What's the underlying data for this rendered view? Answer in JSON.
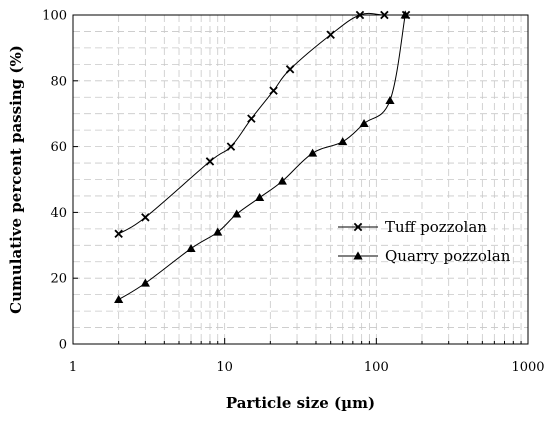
{
  "chart_data": {
    "type": "line",
    "title": "",
    "xlabel": "Particle size (µm)",
    "ylabel": "Cumulative percent passing (%)",
    "xscale": "log",
    "xlim": [
      1,
      1000
    ],
    "ylim": [
      0,
      100
    ],
    "x_ticks": [
      1,
      10,
      100,
      1000
    ],
    "x_tick_labels": [
      "1",
      "10",
      "100",
      "1000"
    ],
    "y_ticks": [
      0,
      20,
      40,
      60,
      80,
      100
    ],
    "y_tick_labels": [
      "0",
      "20",
      "40",
      "60",
      "80",
      "100"
    ],
    "grid": true,
    "grid_style": "dashed",
    "legend_position": "right",
    "series": [
      {
        "name": "Tuff pozzolan",
        "marker": "cross",
        "color": "#000000",
        "points": [
          {
            "x": 2,
            "y": 33.5
          },
          {
            "x": 3,
            "y": 38.5
          },
          {
            "x": 8,
            "y": 55.5
          },
          {
            "x": 11,
            "y": 60
          },
          {
            "x": 15,
            "y": 68.5
          },
          {
            "x": 21,
            "y": 77
          },
          {
            "x": 27,
            "y": 83.5
          },
          {
            "x": 50,
            "y": 94
          },
          {
            "x": 78,
            "y": 100
          },
          {
            "x": 113,
            "y": 100
          },
          {
            "x": 157,
            "y": 100
          }
        ]
      },
      {
        "name": "Quarry pozzolan",
        "marker": "triangle",
        "color": "#000000",
        "points": [
          {
            "x": 2,
            "y": 13.5
          },
          {
            "x": 3,
            "y": 18.5
          },
          {
            "x": 6,
            "y": 29
          },
          {
            "x": 9,
            "y": 34
          },
          {
            "x": 12,
            "y": 39.5
          },
          {
            "x": 17,
            "y": 44.5
          },
          {
            "x": 24,
            "y": 49.5
          },
          {
            "x": 38,
            "y": 58
          },
          {
            "x": 60,
            "y": 61.5
          },
          {
            "x": 83,
            "y": 67
          },
          {
            "x": 123,
            "y": 74
          },
          {
            "x": 155,
            "y": 100
          }
        ]
      }
    ]
  }
}
